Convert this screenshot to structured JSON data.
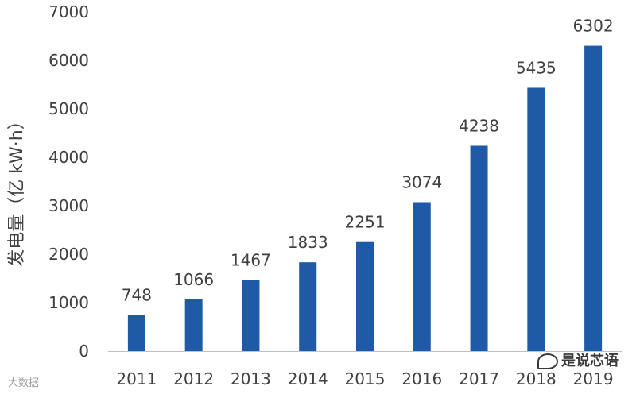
{
  "chart_data": {
    "type": "bar",
    "categories": [
      "2011",
      "2012",
      "2013",
      "2014",
      "2015",
      "2016",
      "2017",
      "2018",
      "2019"
    ],
    "values": [
      748,
      1066,
      1467,
      1833,
      2251,
      3074,
      4238,
      5435,
      6302
    ],
    "data_labels": [
      "748",
      "1066",
      "1467",
      "1833",
      "2251",
      "3074",
      "4238",
      "5435",
      "6302"
    ],
    "title": "",
    "xlabel": "",
    "ylabel": "发电量（亿 kW·h）",
    "ylim": [
      0,
      7000
    ],
    "yticks": [
      "0",
      "1000",
      "2000",
      "3000",
      "4000",
      "5000",
      "6000",
      "7000"
    ],
    "grid": false,
    "bar_color": "#1f5aa6",
    "axis_color": "#bfbfbf",
    "text_color": "#404040"
  },
  "watermarks": {
    "right": "是说芯语",
    "left": "大数据"
  }
}
